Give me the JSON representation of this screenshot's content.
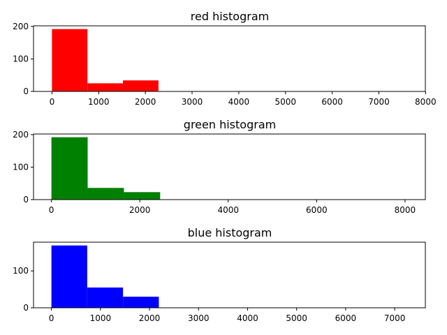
{
  "chart_data": [
    {
      "type": "histogram",
      "title": "red histogram",
      "color": "#ff0000",
      "xlim": [
        -395,
        7995
      ],
      "ylim": [
        0,
        202
      ],
      "xticks": [
        0,
        1000,
        2000,
        3000,
        4000,
        5000,
        6000,
        7000,
        8000
      ],
      "yticks": [
        0,
        100,
        200
      ],
      "bins": [
        {
          "x0": 0,
          "x1": 760,
          "count": 192
        },
        {
          "x0": 760,
          "x1": 1520,
          "count": 25
        },
        {
          "x0": 1520,
          "x1": 2280,
          "count": 34
        }
      ]
    },
    {
      "type": "histogram",
      "title": "green histogram",
      "color": "#008000",
      "xlim": [
        -405,
        8460
      ],
      "ylim": [
        0,
        202
      ],
      "xticks": [
        0,
        2000,
        4000,
        6000,
        8000
      ],
      "yticks": [
        0,
        100,
        200
      ],
      "bins": [
        {
          "x0": 0,
          "x1": 820,
          "count": 192
        },
        {
          "x0": 820,
          "x1": 1640,
          "count": 36
        },
        {
          "x0": 1640,
          "x1": 2460,
          "count": 23
        }
      ]
    },
    {
      "type": "histogram",
      "title": "blue histogram",
      "color": "#0000ff",
      "xlim": [
        -365,
        7625
      ],
      "ylim": [
        0,
        178
      ],
      "xticks": [
        0,
        1000,
        2000,
        3000,
        4000,
        5000,
        6000,
        7000
      ],
      "yticks": [
        0,
        100
      ],
      "bins": [
        {
          "x0": 0,
          "x1": 730,
          "count": 169
        },
        {
          "x0": 730,
          "x1": 1460,
          "count": 55
        },
        {
          "x0": 1460,
          "x1": 2190,
          "count": 30
        }
      ]
    }
  ]
}
